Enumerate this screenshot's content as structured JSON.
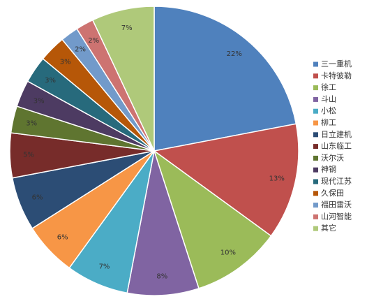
{
  "chart_data": {
    "type": "pie",
    "start_angle_deg": 0,
    "direction": "clockwise",
    "legend_position": "right",
    "slices": [
      {
        "label": "三一重机",
        "value": 22,
        "value_label": "22%",
        "color": "#4F81BD"
      },
      {
        "label": "卡特彼勒",
        "value": 13,
        "value_label": "13%",
        "color": "#C0504D"
      },
      {
        "label": "徐工",
        "value": 10,
        "value_label": "10%",
        "color": "#9BBB59"
      },
      {
        "label": "斗山",
        "value": 8,
        "value_label": "8%",
        "color": "#8064A2"
      },
      {
        "label": "小松",
        "value": 7,
        "value_label": "7%",
        "color": "#4BACC6"
      },
      {
        "label": "柳工",
        "value": 6,
        "value_label": "6%",
        "color": "#F79646"
      },
      {
        "label": "日立建机",
        "value": 6,
        "value_label": "6%",
        "color": "#2C4D75"
      },
      {
        "label": "山东临工",
        "value": 5,
        "value_label": "5%",
        "color": "#772C2A"
      },
      {
        "label": "沃尔沃",
        "value": 3,
        "value_label": "3%",
        "color": "#5F7530"
      },
      {
        "label": "神钢",
        "value": 3,
        "value_label": "3%",
        "color": "#4D3B62"
      },
      {
        "label": "现代江苏",
        "value": 3,
        "value_label": "3%",
        "color": "#276A7C"
      },
      {
        "label": "久保田",
        "value": 3,
        "value_label": "3%",
        "color": "#B65708"
      },
      {
        "label": "福田雷沃",
        "value": 2,
        "value_label": "2%",
        "color": "#729ACA"
      },
      {
        "label": "山河智能",
        "value": 2,
        "value_label": "2%",
        "color": "#CD7371"
      },
      {
        "label": "其它",
        "value": 7,
        "value_label": "7%",
        "color": "#AFC97A"
      }
    ]
  }
}
